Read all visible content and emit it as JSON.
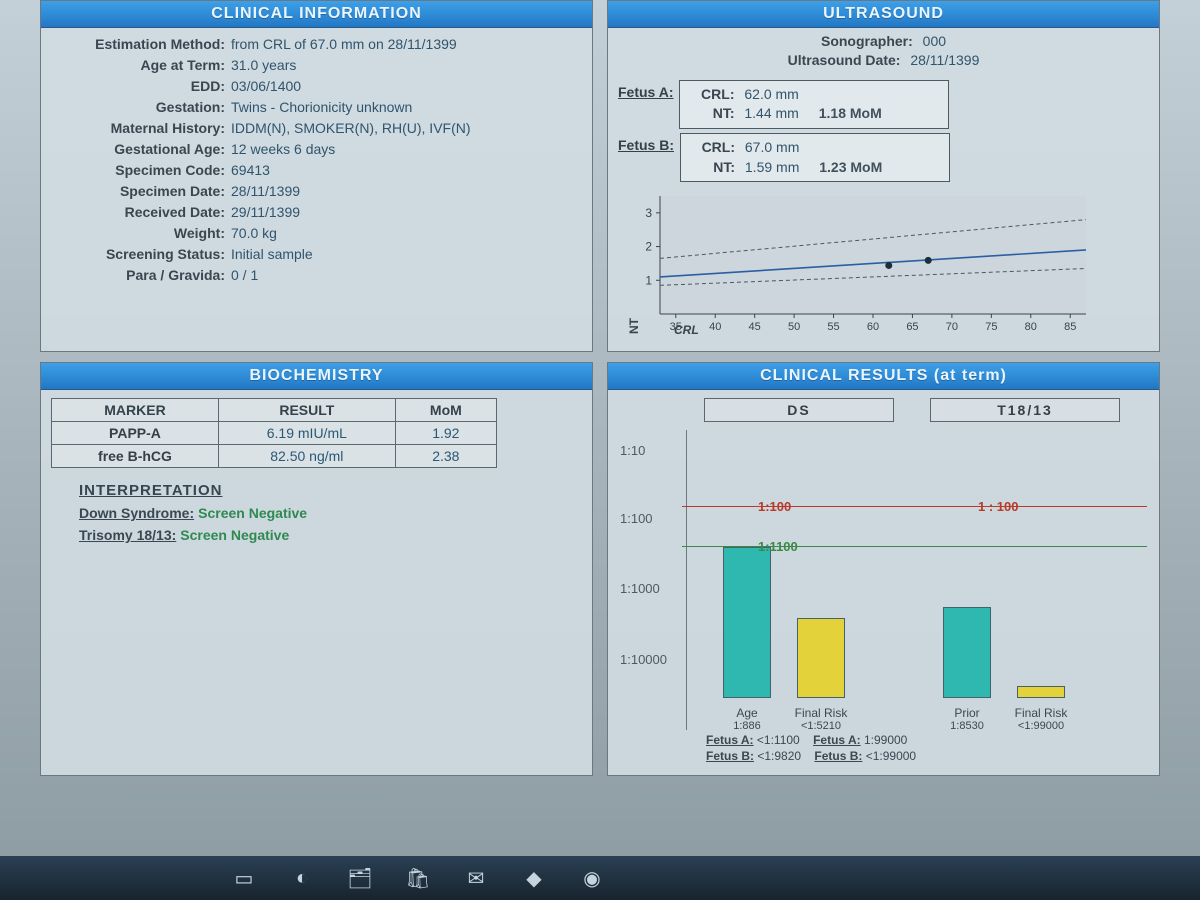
{
  "clinical_info": {
    "title": "CLINICAL INFORMATION",
    "fields": {
      "estimation_method": {
        "label": "Estimation Method:",
        "value": "from CRL of 67.0 mm on 28/11/1399"
      },
      "age_at_term": {
        "label": "Age at Term:",
        "value": "31.0 years"
      },
      "edd": {
        "label": "EDD:",
        "value": "03/06/1400"
      },
      "gestation": {
        "label": "Gestation:",
        "value": "Twins - Chorionicity unknown"
      },
      "maternal_history": {
        "label": "Maternal History:",
        "value": "IDDM(N), SMOKER(N), RH(U), IVF(N)"
      },
      "gestational_age": {
        "label": "Gestational Age:",
        "value": "12 weeks 6 days"
      },
      "specimen_code": {
        "label": "Specimen Code:",
        "value": "69413"
      },
      "specimen_date": {
        "label": "Specimen Date:",
        "value": "28/11/1399"
      },
      "received_date": {
        "label": "Received Date:",
        "value": "29/11/1399"
      },
      "weight": {
        "label": "Weight:",
        "value": "70.0 kg"
      },
      "screening_status": {
        "label": "Screening Status:",
        "value": "Initial sample"
      },
      "para_gravida": {
        "label": "Para / Gravida:",
        "value": "0 / 1"
      }
    }
  },
  "ultrasound": {
    "title": "ULTRASOUND",
    "sonographer": {
      "label": "Sonographer:",
      "value": "000"
    },
    "date": {
      "label": "Ultrasound Date:",
      "value": "28/11/1399"
    },
    "fetus_a": {
      "tag": "Fetus A:",
      "crl": {
        "label": "CRL:",
        "value": "62.0 mm"
      },
      "nt": {
        "label": "NT:",
        "value": "1.44 mm",
        "mom": "1.18 MoM"
      }
    },
    "fetus_b": {
      "tag": "Fetus B:",
      "crl": {
        "label": "CRL:",
        "value": "67.0 mm"
      },
      "nt": {
        "label": "NT:",
        "value": "1.59 mm",
        "mom": "1.23 MoM"
      }
    },
    "chart": {
      "type": "scatter-with-band",
      "x_label": "CRL",
      "y_label": "NT",
      "xlim": [
        33,
        87
      ],
      "ylim": [
        0,
        3.5
      ],
      "yticks": [
        1,
        2,
        3
      ],
      "xticks": [
        35,
        40,
        45,
        50,
        55,
        60,
        65,
        70,
        75,
        80,
        85
      ],
      "band_lower": [
        [
          33,
          0.85
        ],
        [
          87,
          1.35
        ]
      ],
      "band_median": [
        [
          33,
          1.1
        ],
        [
          87,
          1.9
        ]
      ],
      "band_upper": [
        [
          33,
          1.65
        ],
        [
          87,
          2.8
        ]
      ],
      "points": [
        {
          "x": 62,
          "y": 1.44
        },
        {
          "x": 67,
          "y": 1.59
        }
      ],
      "line_color": "#2a5fa4",
      "dash_color": "#4a5862",
      "point_color": "#1a2e3c",
      "bg_color": "#cdd6dc",
      "axis_color": "#38444c",
      "label_fontsize": 12
    }
  },
  "biochemistry": {
    "title": "BIOCHEMISTRY",
    "columns": [
      "MARKER",
      "RESULT",
      "MoM"
    ],
    "rows": [
      {
        "marker": "PAPP-A",
        "result": "6.19 mIU/mL",
        "mom": "1.92"
      },
      {
        "marker": "free B-hCG",
        "result": "82.50 ng/ml",
        "mom": "2.38"
      }
    ],
    "interpretation": {
      "title": "INTERPRETATION",
      "items": [
        {
          "label": "Down Syndrome:",
          "value": "Screen Negative"
        },
        {
          "label": "Trisomy 18/13:",
          "value": "Screen Negative"
        }
      ],
      "value_color": "#2e8a50"
    }
  },
  "clinical_results": {
    "title": "CLINICAL RESULTS (at term)",
    "sub_ds": "DS",
    "sub_t18": "T18/13",
    "ytick_labels": [
      "1:10",
      "1:100",
      "1:1000",
      "1:10000"
    ],
    "thresholds": {
      "hi": {
        "label": "1:100",
        "color": "#b83a2a"
      },
      "lo": {
        "label": "1:1100",
        "color": "#3a8a46"
      }
    },
    "t18_threshold_label": "1 : 100",
    "bars": {
      "ds": [
        {
          "label": "Age",
          "sub": "1:886",
          "color": "#2fb8b0",
          "height_frac": 0.6
        },
        {
          "label": "Final Risk",
          "sub": "<1:5210",
          "color": "#e4d23a",
          "height_frac": 0.32
        }
      ],
      "t18": [
        {
          "label": "Prior",
          "sub": "1:8530",
          "color": "#2fb8b0",
          "height_frac": 0.36
        },
        {
          "label": "Final Risk",
          "sub": "<1:99000",
          "color": "#e4d23a",
          "height_frac": 0.05
        }
      ]
    },
    "fetus_lines": [
      {
        "label": "Fetus A:",
        "ds": "<1:1100",
        "t18_label": "Fetus A:",
        "t18": "1:99000"
      },
      {
        "label": "Fetus B:",
        "ds": "<1:9820",
        "t18_label": "Fetus B:",
        "t18": "<1:99000"
      }
    ]
  },
  "colors": {
    "header_bg_top": "#3da0e8",
    "header_bg_bottom": "#2278c6",
    "panel_bg": "#d2dce2",
    "panel_border": "#6b7880",
    "taskbar_bg": "#1c2e3c"
  }
}
